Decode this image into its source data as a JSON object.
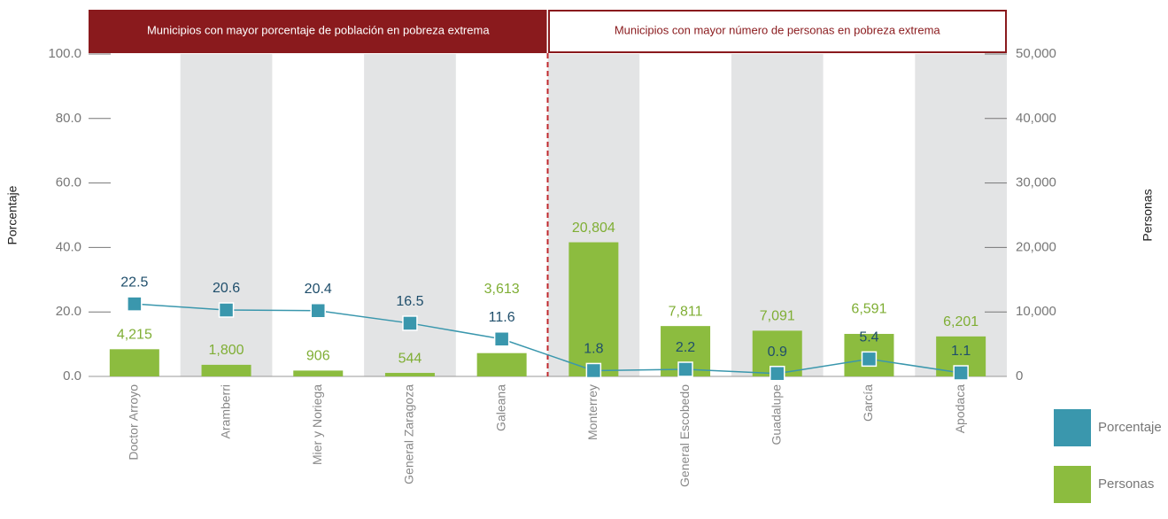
{
  "chart_data": {
    "type": "bar-line",
    "sections": [
      "Municipios con mayor porcentaje de población en pobreza extrema",
      "Municipios con mayor número de personas en pobreza extrema"
    ],
    "categories": [
      "Doctor Arroyo",
      "Aramberri",
      "Mier y Noriega",
      "General Zaragoza",
      "Galeana",
      "Monterrey",
      "General Escobedo",
      "Guadalupe",
      "García",
      "Apodaca"
    ],
    "series": [
      {
        "name": "Porcentaje",
        "color": "#3a97ad",
        "type": "line",
        "axis": "y",
        "values": [
          22.5,
          20.6,
          20.4,
          16.5,
          11.6,
          1.8,
          2.2,
          0.9,
          5.4,
          1.1
        ]
      },
      {
        "name": "Personas",
        "color": "#8cbc3f",
        "type": "bar",
        "axis": "y2",
        "values": [
          4215,
          1800,
          906,
          544,
          3613,
          20804,
          7811,
          7091,
          6591,
          6201
        ],
        "value_labels": [
          "4,215",
          "1,800",
          "906",
          "544",
          "3,613",
          "20,804",
          "7,811",
          "7,091",
          "6,591",
          "6,201"
        ]
      }
    ],
    "ylabel": "Porcentaje",
    "y2label": "Personas",
    "ylim": [
      0,
      100
    ],
    "yticks": [
      {
        "value": 0,
        "label": "0.0"
      },
      {
        "value": 20,
        "label": "20.0"
      },
      {
        "value": 40,
        "label": "40.0"
      },
      {
        "value": 60,
        "label": "60.0"
      },
      {
        "value": 80,
        "label": "80.0"
      },
      {
        "value": 100,
        "label": "100.0"
      }
    ],
    "y2lim": [
      0,
      50000
    ],
    "y2ticks": [
      0,
      {
        "value": 10000,
        "label": "10,000"
      },
      {
        "value": 20000,
        "label": "20,000"
      },
      {
        "value": 30000,
        "label": "30,000"
      },
      {
        "value": 40000,
        "label": "40,000"
      },
      {
        "value": 50000,
        "label": "50,000"
      }
    ],
    "legend": "bottom-right"
  }
}
